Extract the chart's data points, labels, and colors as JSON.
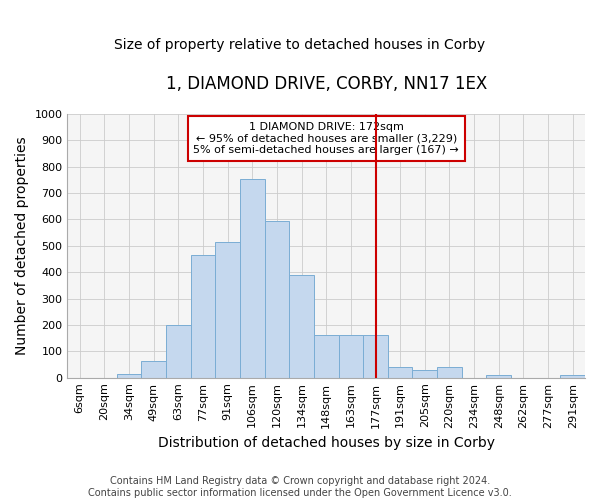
{
  "title": "1, DIAMOND DRIVE, CORBY, NN17 1EX",
  "subtitle": "Size of property relative to detached houses in Corby",
  "xlabel": "Distribution of detached houses by size in Corby",
  "ylabel": "Number of detached properties",
  "footer1": "Contains HM Land Registry data © Crown copyright and database right 2024.",
  "footer2": "Contains public sector information licensed under the Open Government Licence v3.0.",
  "categories": [
    "6sqm",
    "20sqm",
    "34sqm",
    "49sqm",
    "63sqm",
    "77sqm",
    "91sqm",
    "106sqm",
    "120sqm",
    "134sqm",
    "148sqm",
    "163sqm",
    "177sqm",
    "191sqm",
    "205sqm",
    "220sqm",
    "234sqm",
    "248sqm",
    "262sqm",
    "277sqm",
    "291sqm"
  ],
  "values": [
    0,
    0,
    15,
    65,
    200,
    465,
    515,
    755,
    595,
    390,
    160,
    160,
    160,
    42,
    28,
    42,
    0,
    12,
    0,
    0,
    10
  ],
  "bar_color": "#c5d8ee",
  "bar_edge_color": "#7aadd4",
  "vline_color": "#cc0000",
  "annotation_title": "1 DIAMOND DRIVE: 172sqm",
  "annotation_line1": "← 95% of detached houses are smaller (3,229)",
  "annotation_line2": "5% of semi-detached houses are larger (167) →",
  "ylim": [
    0,
    1000
  ],
  "yticks": [
    0,
    100,
    200,
    300,
    400,
    500,
    600,
    700,
    800,
    900,
    1000
  ],
  "fig_bg": "#ffffff",
  "plot_bg": "#f5f5f5",
  "grid_color": "#cccccc",
  "title_fontsize": 12,
  "subtitle_fontsize": 10,
  "axis_label_fontsize": 10,
  "tick_fontsize": 8,
  "footer_fontsize": 7
}
